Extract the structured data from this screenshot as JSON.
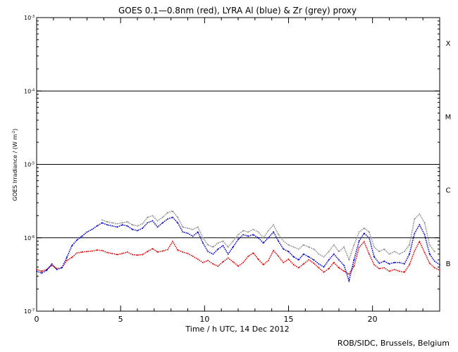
{
  "chart_data": {
    "type": "line",
    "title": "GOES 0.1—0.8nm (red), LYRA Al (blue) & Zr (grey) proxy",
    "xlabel": "Time / h UTC, 14 Dec 2012",
    "ylabel_html": "GOES Irradiance / (W m<tspan baseline-shift='super' font-size='6'>-2</tspan>)",
    "ylabel": "GOES Irradiance / (W m-2)",
    "xlim": [
      0,
      24
    ],
    "ylim": [
      1e-07,
      0.001
    ],
    "y_scale": "log",
    "x_ticks": [
      0,
      5,
      10,
      15,
      20
    ],
    "y_ticks": [
      {
        "value": 1e-07,
        "label": "10",
        "exp": "-7"
      },
      {
        "value": 1e-06,
        "label": "10",
        "exp": "-6"
      },
      {
        "value": 1e-05,
        "label": "10",
        "exp": "-5"
      },
      {
        "value": 0.0001,
        "label": "10",
        "exp": "-4"
      },
      {
        "value": 0.001,
        "label": "10",
        "exp": "-3"
      }
    ],
    "flare_lines": [
      1e-06,
      1e-05,
      0.0001
    ],
    "class_labels": [
      {
        "label": "B",
        "value": 4.5e-07
      },
      {
        "label": "C",
        "value": 4.5e-06
      },
      {
        "label": "M",
        "value": 4.5e-05
      },
      {
        "label": "X",
        "value": 0.00045
      }
    ],
    "series": [
      {
        "name": "GOES 0.1-0.8nm",
        "color": "#dd0000",
        "x": [
          0,
          0.3,
          0.6,
          0.9,
          1.2,
          1.5,
          1.8,
          2.1,
          2.4,
          2.7,
          3.0,
          3.3,
          3.6,
          3.9,
          4.2,
          4.5,
          4.8,
          5.1,
          5.4,
          5.7,
          6.0,
          6.3,
          6.6,
          6.9,
          7.2,
          7.5,
          7.8,
          8.1,
          8.4,
          8.7,
          9.0,
          9.3,
          9.6,
          9.9,
          10.2,
          10.5,
          10.8,
          11.1,
          11.4,
          11.7,
          12.0,
          12.3,
          12.6,
          12.9,
          13.2,
          13.5,
          13.8,
          14.1,
          14.4,
          14.7,
          15.0,
          15.3,
          15.6,
          15.9,
          16.2,
          16.5,
          16.8,
          17.1,
          17.4,
          17.7,
          18.0,
          18.3,
          18.6,
          18.9,
          19.2,
          19.5,
          19.8,
          20.1,
          20.4,
          20.7,
          21.0,
          21.3,
          21.6,
          21.9,
          22.2,
          22.5,
          22.8,
          23.1,
          23.4,
          23.7,
          24.0
        ],
        "values": [
          3.7e-07,
          3.5e-07,
          3.7e-07,
          4.2e-07,
          3.8e-07,
          3.9e-07,
          4.9e-07,
          5.4e-07,
          6.2e-07,
          6.4e-07,
          6.5e-07,
          6.6e-07,
          6.8e-07,
          6.7e-07,
          6.3e-07,
          6.1e-07,
          5.9e-07,
          6.1e-07,
          6.4e-07,
          5.9e-07,
          5.8e-07,
          5.9e-07,
          6.5e-07,
          7.1e-07,
          6.4e-07,
          6.6e-07,
          6.9e-07,
          8.9e-07,
          6.8e-07,
          6.4e-07,
          6.1e-07,
          5.6e-07,
          5.1e-07,
          4.6e-07,
          4.9e-07,
          4.4e-07,
          4.1e-07,
          4.7e-07,
          5.3e-07,
          4.7e-07,
          4.1e-07,
          4.6e-07,
          5.6e-07,
          6.2e-07,
          5.1e-07,
          4.3e-07,
          4.9e-07,
          6.7e-07,
          5.6e-07,
          4.6e-07,
          5.1e-07,
          4.3e-07,
          3.9e-07,
          4.4e-07,
          5e-07,
          4.5e-07,
          3.9e-07,
          3.4e-07,
          3.8e-07,
          4.6e-07,
          3.9e-07,
          3.5e-07,
          3.2e-07,
          4.1e-07,
          7.4e-07,
          8.8e-07,
          6e-07,
          4.3e-07,
          3.8e-07,
          3.9e-07,
          3.5e-07,
          3.7e-07,
          3.5e-07,
          3.4e-07,
          4.3e-07,
          6.6e-07,
          8.9e-07,
          6.3e-07,
          4.5e-07,
          3.9e-07,
          3.6e-07
        ]
      },
      {
        "name": "LYRA Al",
        "color": "#0000cc",
        "x": [
          0,
          0.3,
          0.6,
          0.9,
          1.2,
          1.5,
          1.8,
          2.1,
          2.4,
          2.7,
          3.0,
          3.3,
          3.6,
          3.9,
          4.2,
          4.5,
          4.8,
          5.1,
          5.4,
          5.7,
          6.0,
          6.3,
          6.6,
          6.9,
          7.2,
          7.5,
          7.8,
          8.1,
          8.4,
          8.7,
          9.0,
          9.3,
          9.6,
          9.9,
          10.2,
          10.5,
          10.8,
          11.1,
          11.4,
          11.7,
          12.0,
          12.3,
          12.6,
          12.9,
          13.2,
          13.5,
          13.8,
          14.1,
          14.4,
          14.7,
          15.0,
          15.3,
          15.6,
          15.9,
          16.2,
          16.5,
          16.8,
          17.1,
          17.4,
          17.7,
          18.0,
          18.3,
          18.6,
          18.9,
          19.2,
          19.5,
          19.8,
          20.1,
          20.4,
          20.7,
          21.0,
          21.3,
          21.6,
          21.9,
          22.2,
          22.5,
          22.8,
          23.1,
          23.4,
          23.7,
          24.0
        ],
        "values": [
          3.5e-07,
          3.3e-07,
          3.6e-07,
          4.4e-07,
          3.7e-07,
          3.9e-07,
          5.4e-07,
          7.8e-07,
          9.3e-07,
          1.05e-06,
          1.2e-06,
          1.3e-06,
          1.45e-06,
          1.6e-06,
          1.5e-06,
          1.45e-06,
          1.4e-06,
          1.5e-06,
          1.45e-06,
          1.3e-06,
          1.25e-06,
          1.35e-06,
          1.6e-06,
          1.7e-06,
          1.4e-06,
          1.6e-06,
          1.8e-06,
          1.9e-06,
          1.6e-06,
          1.2e-06,
          1.15e-06,
          1.05e-06,
          1.2e-06,
          8.5e-07,
          6.5e-07,
          6e-07,
          7e-07,
          7.8e-07,
          6e-07,
          7.5e-07,
          9.5e-07,
          1.1e-06,
          1.05e-06,
          1.1e-06,
          1e-06,
          8.5e-07,
          1e-06,
          1.2e-06,
          9e-07,
          7e-07,
          6.5e-07,
          5.5e-07,
          5e-07,
          6e-07,
          5.5e-07,
          5e-07,
          4.4e-07,
          4e-07,
          5e-07,
          6e-07,
          5e-07,
          4.2e-07,
          2.6e-07,
          5e-07,
          9e-07,
          1.15e-06,
          1e-06,
          5.5e-07,
          4.5e-07,
          4.8e-07,
          4.4e-07,
          4.6e-07,
          4.6e-07,
          4.4e-07,
          6e-07,
          1.15e-06,
          1.5e-06,
          1.1e-06,
          6e-07,
          4.8e-07,
          4.3e-07
        ]
      },
      {
        "name": "LYRA Zr",
        "color": "#8c8c8c",
        "x": [
          3.9,
          4.2,
          4.5,
          4.8,
          5.1,
          5.4,
          5.7,
          6.0,
          6.3,
          6.6,
          6.9,
          7.2,
          7.5,
          7.8,
          8.1,
          8.4,
          8.7,
          9.0,
          9.3,
          9.6,
          9.9,
          10.2,
          10.5,
          10.8,
          11.1,
          11.4,
          11.7,
          12.0,
          12.3,
          12.6,
          12.9,
          13.2,
          13.5,
          13.8,
          14.1,
          14.4,
          14.7,
          15.0,
          15.3,
          15.6,
          15.9,
          16.2,
          16.5,
          16.8,
          17.1,
          17.4,
          17.7,
          18.0,
          18.3,
          18.6,
          18.9,
          19.2,
          19.5,
          19.8,
          20.1,
          20.4,
          20.7,
          21.0,
          21.3,
          21.6,
          21.9,
          22.2,
          22.5,
          22.8,
          23.1,
          23.4,
          23.7
        ],
        "values": [
          1.75e-06,
          1.65e-06,
          1.6e-06,
          1.55e-06,
          1.6e-06,
          1.65e-06,
          1.5e-06,
          1.45e-06,
          1.55e-06,
          1.9e-06,
          2e-06,
          1.7e-06,
          1.9e-06,
          2.2e-06,
          2.3e-06,
          1.9e-06,
          1.4e-06,
          1.35e-06,
          1.3e-06,
          1.4e-06,
          1e-06,
          8e-07,
          7.5e-07,
          8.5e-07,
          9e-07,
          7.5e-07,
          9e-07,
          1.1e-06,
          1.25e-06,
          1.2e-06,
          1.3e-06,
          1.2e-06,
          1e-06,
          1.25e-06,
          1.5e-06,
          1.1e-06,
          9e-07,
          8e-07,
          7.5e-07,
          7e-07,
          8e-07,
          7.5e-07,
          7e-07,
          6e-07,
          5.5e-07,
          6.5e-07,
          8e-07,
          6.5e-07,
          7.5e-07,
          5e-07,
          8e-07,
          1.2e-06,
          1.35e-06,
          1.2e-06,
          7.5e-07,
          6.5e-07,
          7e-07,
          6e-07,
          6.5e-07,
          6e-07,
          6.5e-07,
          8e-07,
          1.8e-06,
          2.1e-06,
          1.6e-06,
          8e-07,
          6.5e-07
        ]
      }
    ]
  },
  "footer": {
    "credit": "ROB/SIDC, Brussels, Belgium"
  }
}
